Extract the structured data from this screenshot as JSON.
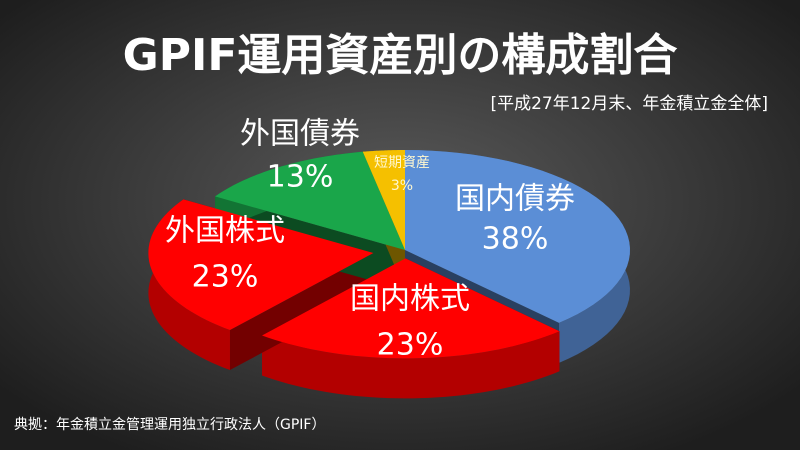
{
  "chart_data": {
    "type": "pie",
    "title": "GPIF運用資産別の構成割合",
    "subtitle": "[平成27年12月末、年金積立金全体]",
    "source": "典拠：年金積立金管理運用独立行政法人（GPIF）",
    "categories": [
      "国内債券",
      "国内株式",
      "外国株式",
      "外国債券",
      "短期資産"
    ],
    "values": [
      38,
      23,
      23,
      13,
      3
    ],
    "value_labels": [
      "38%",
      "23%",
      "23%",
      "13%",
      "3%"
    ],
    "colors": [
      "#5b8ed6",
      "#ff0000",
      "#ff0000",
      "#1aa64a",
      "#f5c000"
    ]
  }
}
